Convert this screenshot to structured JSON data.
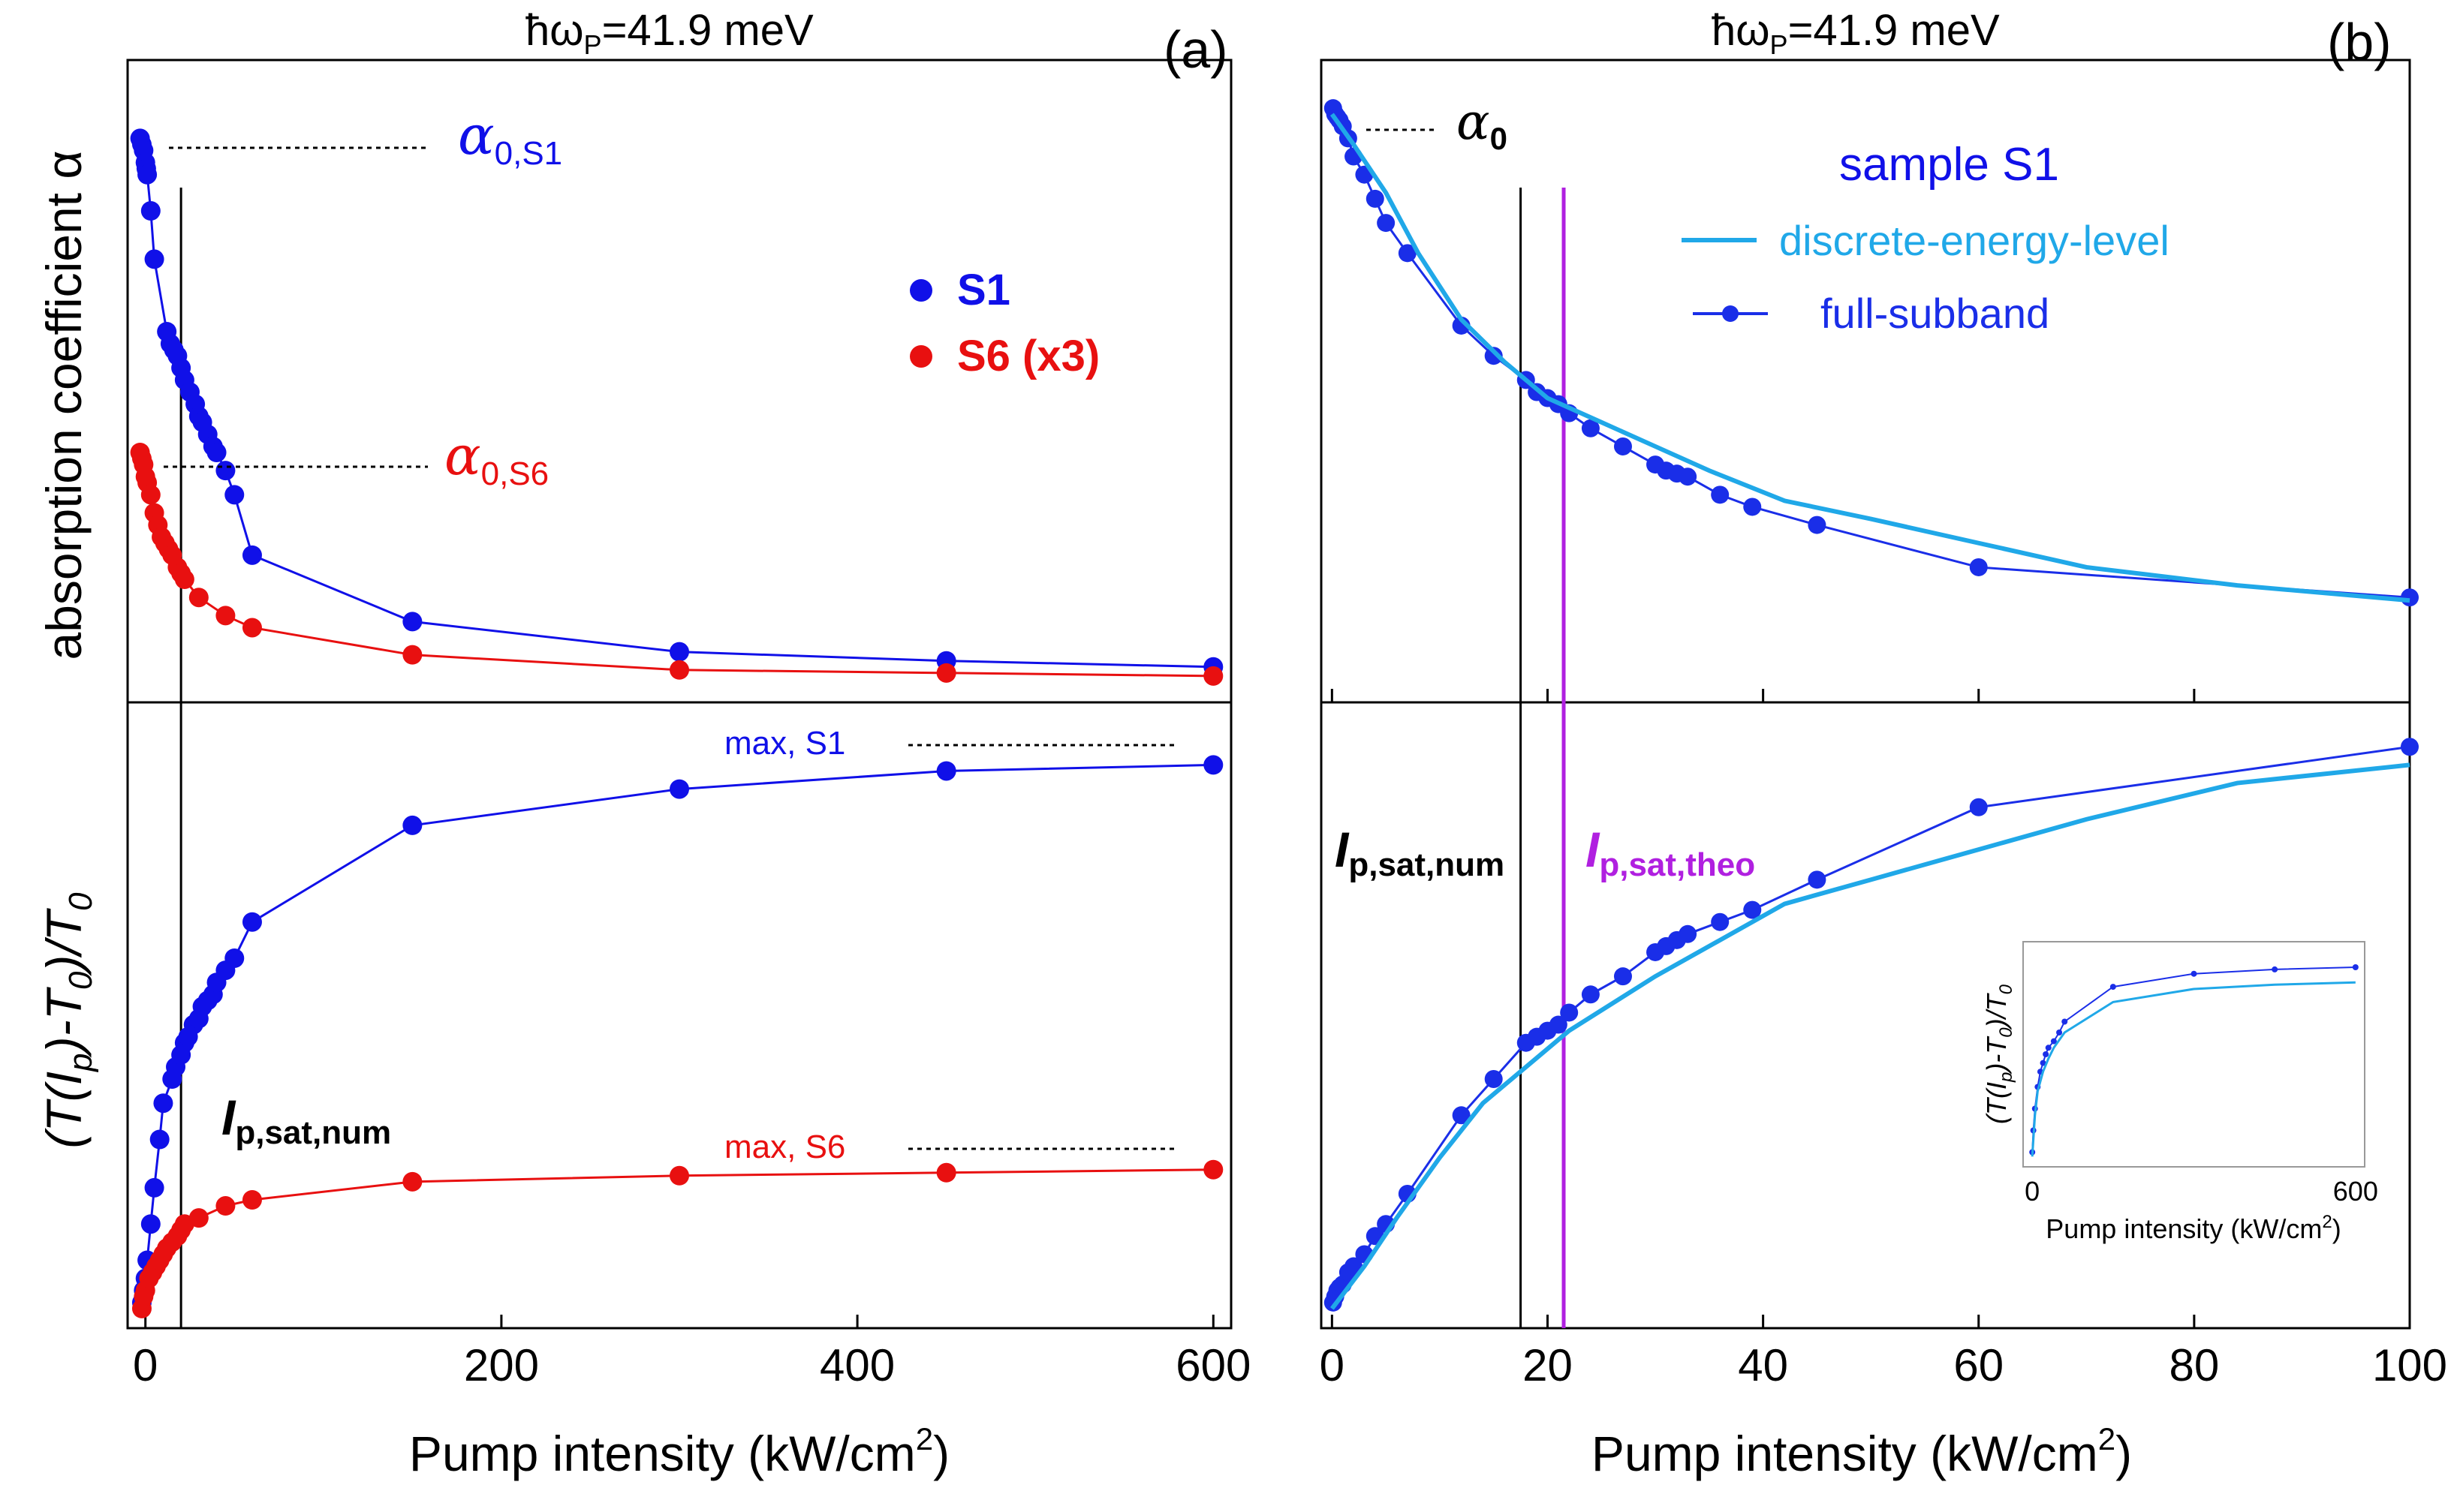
{
  "chart_data": [
    {
      "type": "line",
      "panel_label": "(a)",
      "title": "ħω_P=41.9 meV",
      "title_main": "ħω",
      "title_sub": "P",
      "title_rest": "=41.9 meV",
      "xlabel": "Pump intensity (kW/cm",
      "xlabel_sup": "2",
      "xlabel_end": ")",
      "xlim": [
        -10,
        610
      ],
      "xticks": [
        0,
        200,
        400,
        600
      ],
      "xtick_labels": [
        "0",
        "200",
        "400",
        "600"
      ],
      "top": {
        "ylabel": "absorption coefficient α",
        "ylim": [
          0,
          1.0
        ],
        "series": [
          {
            "name": "S1",
            "color": "#1010e8",
            "x": [
              -3,
              -2,
              -1,
              0,
              0.5,
              1,
              3,
              5,
              12,
              14,
              16,
              18,
              20,
              22,
              25,
              28,
              30,
              32,
              35,
              38,
              40,
              45,
              50,
              60,
              150,
              300,
              450,
              600
            ],
            "y": [
              0.92,
              0.91,
              0.9,
              0.88,
              0.87,
              0.86,
              0.8,
              0.72,
              0.6,
              0.58,
              0.57,
              0.56,
              0.54,
              0.52,
              0.5,
              0.48,
              0.46,
              0.45,
              0.43,
              0.41,
              0.4,
              0.37,
              0.33,
              0.23,
              0.12,
              0.07,
              0.055,
              0.045
            ]
          },
          {
            "name": "S6 (x3)",
            "color": "#e81010",
            "x": [
              -3,
              -2,
              -1,
              0,
              1,
              3,
              5,
              7,
              9,
              11,
              13,
              15,
              18,
              20,
              22,
              30,
              45,
              60,
              150,
              300,
              450,
              600
            ],
            "y": [
              0.4,
              0.39,
              0.38,
              0.36,
              0.35,
              0.33,
              0.3,
              0.28,
              0.26,
              0.25,
              0.24,
              0.23,
              0.21,
              0.2,
              0.19,
              0.16,
              0.13,
              0.11,
              0.065,
              0.04,
              0.035,
              0.03
            ]
          }
        ],
        "legend": [
          "S1",
          "S6 (x3)"
        ],
        "annotations": [
          "α",
          "0,S1",
          "α",
          "0,S6"
        ]
      },
      "bottom": {
        "ylabel": "(T(I_p)-T_0)/T_0",
        "ylim": [
          0,
          1.0
        ],
        "series": [
          {
            "name": "S1",
            "color": "#1010e8",
            "x": [
              -2,
              -1,
              0,
              1,
              3,
              5,
              8,
              10,
              15,
              17,
              20,
              22,
              24,
              27,
              30,
              32,
              35,
              38,
              40,
              45,
              50,
              60,
              150,
              300,
              450,
              600
            ],
            "y": [
              0.03,
              0.05,
              0.07,
              0.1,
              0.16,
              0.22,
              0.3,
              0.36,
              0.4,
              0.42,
              0.44,
              0.46,
              0.47,
              0.49,
              0.5,
              0.52,
              0.53,
              0.54,
              0.56,
              0.58,
              0.6,
              0.66,
              0.82,
              0.88,
              0.91,
              0.92
            ]
          },
          {
            "name": "S6 (x3)",
            "color": "#e81010",
            "x": [
              -2,
              -1,
              0,
              2,
              4,
              6,
              8,
              10,
              12,
              15,
              18,
              20,
              22,
              30,
              45,
              60,
              150,
              300,
              450,
              600
            ],
            "y": [
              0.02,
              0.04,
              0.05,
              0.07,
              0.08,
              0.09,
              0.1,
              0.11,
              0.12,
              0.13,
              0.14,
              0.15,
              0.16,
              0.17,
              0.19,
              0.2,
              0.23,
              0.24,
              0.245,
              0.25
            ]
          }
        ],
        "annotations": [
          "max, S1",
          "max, S6",
          "I",
          "p,sat,num"
        ]
      },
      "vertical_line_x": 20
    },
    {
      "type": "line",
      "panel_label": "(b)",
      "title": "ħω_P=41.9 meV",
      "title_main": "ħω",
      "title_sub": "P",
      "title_rest": "=41.9 meV",
      "xlabel": "Pump intensity (kW/cm",
      "xlabel_sup": "2",
      "xlabel_end": ")",
      "xlim": [
        -1,
        100
      ],
      "xticks": [
        0,
        20,
        40,
        60,
        80,
        100
      ],
      "xtick_labels": [
        "0",
        "20",
        "40",
        "60",
        "80",
        "100"
      ],
      "top": {
        "ylim": [
          0,
          1.0
        ],
        "legend_title": "sample S1",
        "legend": [
          "discrete-energy-level",
          "full-subband"
        ],
        "series": [
          {
            "name": "full-subband",
            "color": "#1a2ee8",
            "x": [
              0.1,
              0.3,
              0.5,
              0.7,
              1,
              1.5,
              2,
              3,
              4,
              5,
              7,
              12,
              15,
              18,
              19,
              20,
              21,
              22,
              24,
              27,
              30,
              31,
              32,
              33,
              36,
              39,
              45,
              60,
              100
            ],
            "y": [
              0.97,
              0.96,
              0.955,
              0.95,
              0.94,
              0.92,
              0.89,
              0.86,
              0.82,
              0.78,
              0.73,
              0.61,
              0.56,
              0.52,
              0.5,
              0.49,
              0.48,
              0.465,
              0.44,
              0.41,
              0.38,
              0.37,
              0.365,
              0.36,
              0.33,
              0.31,
              0.28,
              0.21,
              0.16
            ]
          },
          {
            "name": "discrete-energy-level",
            "color": "#20a8e8",
            "x": [
              0,
              2,
              5,
              8,
              12,
              16,
              20,
              25,
              30,
              35,
              42,
              50,
              60,
              70,
              84,
              100
            ],
            "y": [
              0.96,
              0.91,
              0.83,
              0.73,
              0.62,
              0.55,
              0.49,
              0.45,
              0.41,
              0.37,
              0.32,
              0.29,
              0.25,
              0.21,
              0.18,
              0.155
            ]
          }
        ],
        "annotations": [
          "α",
          "0"
        ]
      },
      "bottom": {
        "ylim": [
          0,
          1.0
        ],
        "series": [
          {
            "name": "full-subband",
            "color": "#1a2ee8",
            "x": [
              0.1,
              0.3,
              0.5,
              0.7,
              1,
              1.5,
              2,
              3,
              4,
              5,
              7,
              12,
              15,
              18,
              19,
              20,
              21,
              22,
              24,
              27,
              30,
              31,
              32,
              33,
              36,
              39,
              45,
              60,
              100
            ],
            "y": [
              0.03,
              0.04,
              0.05,
              0.055,
              0.06,
              0.08,
              0.09,
              0.11,
              0.14,
              0.16,
              0.21,
              0.34,
              0.4,
              0.46,
              0.47,
              0.48,
              0.49,
              0.51,
              0.54,
              0.57,
              0.61,
              0.62,
              0.63,
              0.64,
              0.66,
              0.68,
              0.73,
              0.85,
              0.95
            ]
          },
          {
            "name": "discrete-energy-level",
            "color": "#20a8e8",
            "x": [
              0,
              3,
              6,
              10,
              14,
              18,
              22,
              30,
              42,
              50,
              60,
              70,
              84,
              100
            ],
            "y": [
              0.02,
              0.09,
              0.17,
              0.27,
              0.36,
              0.42,
              0.48,
              0.57,
              0.69,
              0.73,
              0.78,
              0.83,
              0.89,
              0.92
            ]
          }
        ],
        "annotations": [
          "I",
          "p,sat,num",
          "I",
          "p,sat,theo"
        ]
      },
      "vertical_line_x": 17.5,
      "vertical_line_theo_x": 21.5,
      "inset": {
        "xlabel": "Pump intensity (kW/cm",
        "xlabel_sup": "2",
        "xlabel_end": ")",
        "ylabel": "(T(I_p)-T_0)/T_0",
        "xlim": [
          -10,
          610
        ],
        "xtick_labels": [
          "0",
          "600"
        ],
        "series": [
          {
            "name": "full-subband",
            "color": "#1a2ee8",
            "x": [
              0,
              2,
              5,
              10,
              15,
              20,
              25,
              30,
              40,
              50,
              60,
              150,
              300,
              450,
              600
            ],
            "y": [
              0.05,
              0.15,
              0.25,
              0.35,
              0.42,
              0.46,
              0.5,
              0.53,
              0.56,
              0.6,
              0.65,
              0.81,
              0.87,
              0.89,
              0.9
            ]
          },
          {
            "name": "discrete-energy-level",
            "color": "#20a8e8",
            "x": [
              0,
              5,
              10,
              20,
              30,
              40,
              60,
              150,
              300,
              450,
              600
            ],
            "y": [
              0.03,
              0.22,
              0.33,
              0.42,
              0.48,
              0.53,
              0.6,
              0.74,
              0.8,
              0.82,
              0.83
            ]
          }
        ]
      }
    }
  ]
}
